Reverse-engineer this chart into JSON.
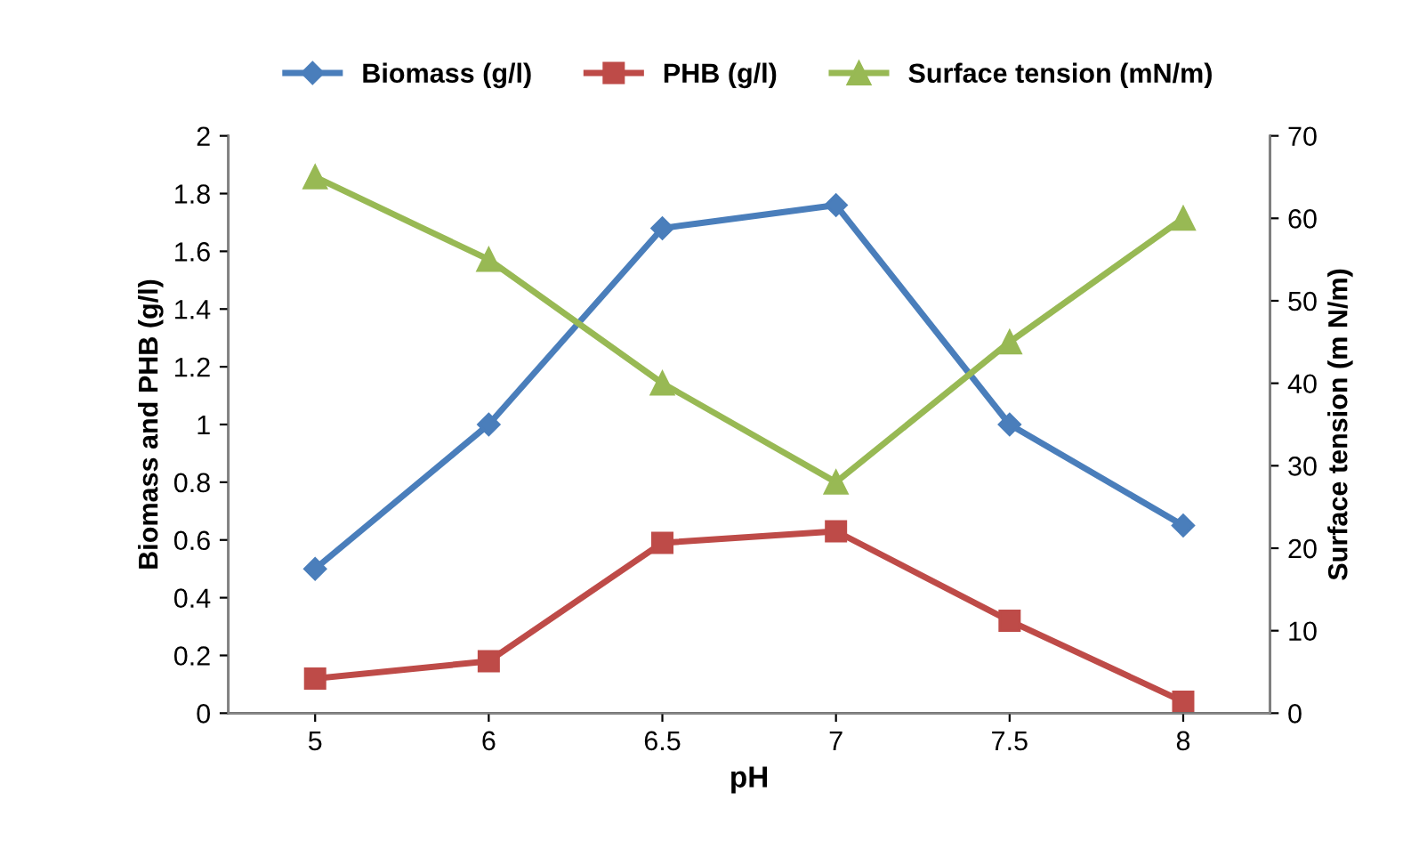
{
  "chart_data": {
    "type": "line",
    "xlabel": "pH",
    "ylabel": "Biomass and PHB (g/l)",
    "y2label": "Surface tension (m N/m)",
    "categories": [
      "5",
      "6",
      "6.5",
      "7",
      "7.5",
      "8"
    ],
    "series": [
      {
        "name": "Biomass (g/l)",
        "color": "#4a7ebb",
        "marker": "diamond",
        "values": [
          0.5,
          1.0,
          1.68,
          1.76,
          1.0,
          0.65
        ]
      },
      {
        "name": "PHB (g/l)",
        "color": "#be4b48",
        "marker": "square",
        "values": [
          0.12,
          0.18,
          0.59,
          0.63,
          0.32,
          0.04
        ]
      },
      {
        "name": "Surface tension (mN/m)",
        "color": "#98b954",
        "marker": "triangle",
        "axis": "y2",
        "values": [
          65,
          55,
          40,
          28,
          45,
          60
        ]
      }
    ],
    "ylim": [
      0,
      2
    ],
    "yticks": [
      0,
      0.2,
      0.4,
      0.6,
      0.8,
      1,
      1.2,
      1.4,
      1.6,
      1.8,
      2
    ],
    "y2lim": [
      0,
      70
    ],
    "y2ticks": [
      0,
      10,
      20,
      30,
      40,
      50,
      60,
      70
    ],
    "grid": false,
    "legend": "top",
    "line_style": "solid"
  }
}
